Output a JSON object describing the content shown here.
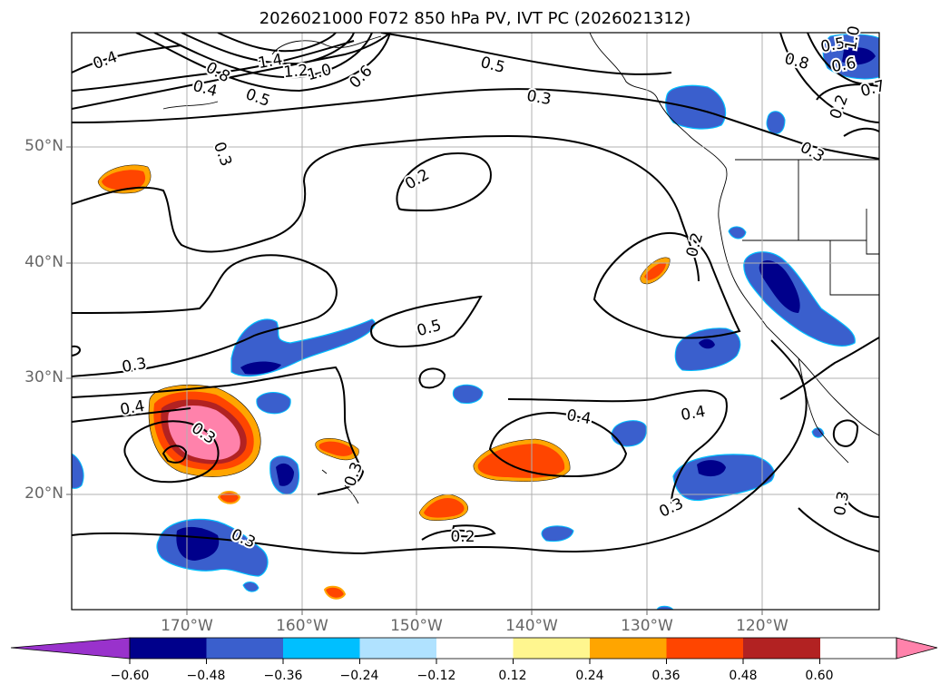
{
  "title": "2026021000 F072 850 hPa PV, IVT PC (2026021312)",
  "axes": {
    "lat_labels": [
      "50°N",
      "40°N",
      "30°N",
      "20°N"
    ],
    "lon_labels": [
      "170°W",
      "160°W",
      "150°W",
      "140°W",
      "130°W",
      "120°W"
    ]
  },
  "colorbar": {
    "ticks": [
      "−0.60",
      "−0.48",
      "−0.36",
      "−0.24",
      "−0.12",
      "0.12",
      "0.24",
      "0.36",
      "0.48",
      "0.60"
    ],
    "colors": [
      "#9932cc",
      "#00008b",
      "#3a5fcd",
      "#00bfff",
      "#b0e2ff",
      "#ffffff",
      "#fff68f",
      "#ffa500",
      "#ff4500",
      "#b22222",
      "#ff82ab"
    ]
  },
  "contour_labels": [
    "0.4",
    "0.8",
    "1.4",
    "1.2",
    "1.0",
    "0.6",
    "0.4",
    "0.5",
    "0.5",
    "0.3",
    "0.3",
    "0.2",
    "0.2",
    "0.5",
    "0.3",
    "0.4",
    "0.3",
    "0.4",
    "0.3",
    "0.4",
    "0.3",
    "0.3",
    "0.2",
    "0.3",
    "0.3",
    "0.2",
    "0.8",
    "0.6",
    "0.7",
    "0.5",
    "1.0"
  ],
  "legend_colors": {
    "line": "#000000",
    "grid": "#b0b0b0"
  }
}
